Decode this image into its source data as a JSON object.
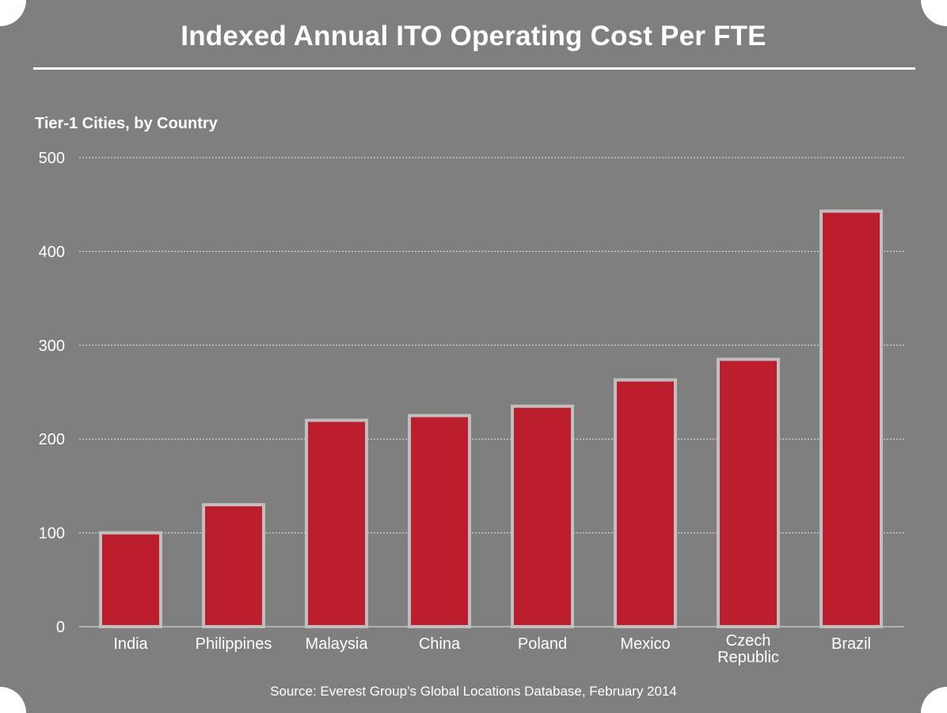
{
  "source_text": "Source: Everest Group’s Global Locations Database, February 2014",
  "colors": {
    "background": "#7f7f7f",
    "bar_fill": "#bc1e2d",
    "bar_stroke": "#bfbfbf",
    "gridline": "#e6e6e6",
    "text": "#ffffff"
  },
  "chart_data": {
    "type": "bar",
    "title": "Indexed Annual ITO Operating Cost Per FTE",
    "subtitle": "Tier-1 Cities, by Country",
    "xlabel": "",
    "ylabel": "",
    "categories": [
      "India",
      "Philippines",
      "Malaysia",
      "China",
      "Poland",
      "Mexico",
      "Czech Republic",
      "Brazil"
    ],
    "category_lines": [
      [
        "India"
      ],
      [
        "Philippines"
      ],
      [
        "Malaysia"
      ],
      [
        "China"
      ],
      [
        "Poland"
      ],
      [
        "Mexico"
      ],
      [
        "Czech",
        "Republic"
      ],
      [
        "Brazil"
      ]
    ],
    "values": [
      100,
      130,
      220,
      225,
      235,
      263,
      285,
      443
    ],
    "ylim": [
      0,
      500
    ],
    "yticks": [
      0,
      100,
      200,
      300,
      400,
      500
    ],
    "grid": true,
    "legend": "none"
  }
}
